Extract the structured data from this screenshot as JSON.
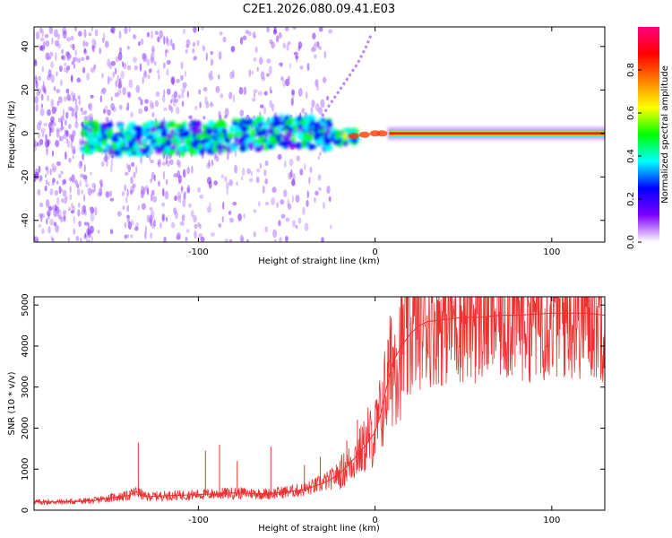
{
  "title": "C2E1.2026.080.09.41.E03",
  "chart_data": [
    {
      "type": "heatmap",
      "title": "C2E1.2026.080.09.41.E03",
      "xlabel": "Height of straight line (km)",
      "ylabel": "Frequency (Hz)",
      "xlim": [
        -193,
        130
      ],
      "ylim": [
        -50,
        49
      ],
      "xticks": [
        -100,
        0,
        100
      ],
      "xtick_labels": [
        "-100",
        "0",
        "100"
      ],
      "yticks": [
        -40,
        -20,
        0,
        20,
        40
      ],
      "ytick_labels": [
        "-40",
        "-20",
        "0",
        "20",
        "40"
      ],
      "ridge": [
        {
          "x": -160,
          "y": -2
        },
        {
          "x": -140,
          "y": -3
        },
        {
          "x": -120,
          "y": -2
        },
        {
          "x": -100,
          "y": -2
        },
        {
          "x": -80,
          "y": -1
        },
        {
          "x": -60,
          "y": 0
        },
        {
          "x": -40,
          "y": 1
        },
        {
          "x": -30,
          "y": 0
        },
        {
          "x": -20,
          "y": -2
        },
        {
          "x": -10,
          "y": -1
        },
        {
          "x": 0,
          "y": 0
        },
        {
          "x": 10,
          "y": 0
        },
        {
          "x": 50,
          "y": 0
        },
        {
          "x": 100,
          "y": 0
        },
        {
          "x": 130,
          "y": 0
        }
      ],
      "branch": [
        {
          "x": -30,
          "y": 8
        },
        {
          "x": -25,
          "y": 14
        },
        {
          "x": -20,
          "y": 20
        },
        {
          "x": -15,
          "y": 26
        },
        {
          "x": -10,
          "y": 32
        },
        {
          "x": -5,
          "y": 40
        },
        {
          "x": -2,
          "y": 46
        }
      ],
      "colorbar": {
        "label": "Normalized spectral amplitude",
        "range": [
          0,
          1
        ],
        "ticks": [
          0.0,
          0.2,
          0.4,
          0.6,
          0.8
        ],
        "tick_labels": [
          "0.0",
          "0.2",
          "0.4",
          "0.6",
          "0.8"
        ],
        "colors": [
          "#ffffff",
          "#7f00ff",
          "#0000ff",
          "#00ffff",
          "#00ff00",
          "#ffff00",
          "#ff8000",
          "#ff0000",
          "#ff0080"
        ]
      }
    },
    {
      "type": "line",
      "xlabel": "Height of straight line (km)",
      "ylabel": "SNR (10 * v/v)",
      "xlim": [
        -193,
        130
      ],
      "ylim": [
        0,
        5200
      ],
      "xticks": [
        -100,
        0,
        100
      ],
      "xtick_labels": [
        "-100",
        "0",
        "100"
      ],
      "yticks": [
        0,
        1000,
        2000,
        3000,
        4000,
        5000
      ],
      "ytick_labels": [
        "0",
        "1000",
        "2000",
        "3000",
        "4000",
        "5000"
      ],
      "color": "#ee3030",
      "series": [
        {
          "name": "SNR",
          "x": [
            -193,
            -180,
            -160,
            -150,
            -140,
            -135,
            -130,
            -120,
            -100,
            -80,
            -60,
            -50,
            -40,
            -30,
            -25,
            -20,
            -15,
            -10,
            -5,
            0,
            3,
            6,
            10,
            15,
            20,
            25,
            30,
            40,
            50,
            60,
            70,
            80,
            100,
            120,
            130
          ],
          "y": [
            200,
            200,
            230,
            300,
            350,
            450,
            330,
            350,
            380,
            420,
            400,
            450,
            500,
            650,
            750,
            900,
            1100,
            1350,
            1600,
            1900,
            2300,
            2900,
            3600,
            4000,
            4300,
            4500,
            4600,
            4650,
            4700,
            4700,
            4750,
            4750,
            4800,
            4800,
            4750
          ],
          "spikes": [
            {
              "x": -134,
              "y": 1650
            },
            {
              "x": -96,
              "y": 1450
            },
            {
              "x": -88,
              "y": 1600
            },
            {
              "x": -78,
              "y": 1200
            },
            {
              "x": -59,
              "y": 1550
            },
            {
              "x": -40,
              "y": 1100
            },
            {
              "x": -31,
              "y": 1300
            },
            {
              "x": -16,
              "y": 1700
            },
            {
              "x": -10,
              "y": 2200
            },
            {
              "x": -4,
              "y": 2500
            },
            {
              "x": 1,
              "y": 2700
            },
            {
              "x": 7,
              "y": 3600
            },
            {
              "x": 12,
              "y": 3950
            }
          ]
        }
      ]
    }
  ]
}
